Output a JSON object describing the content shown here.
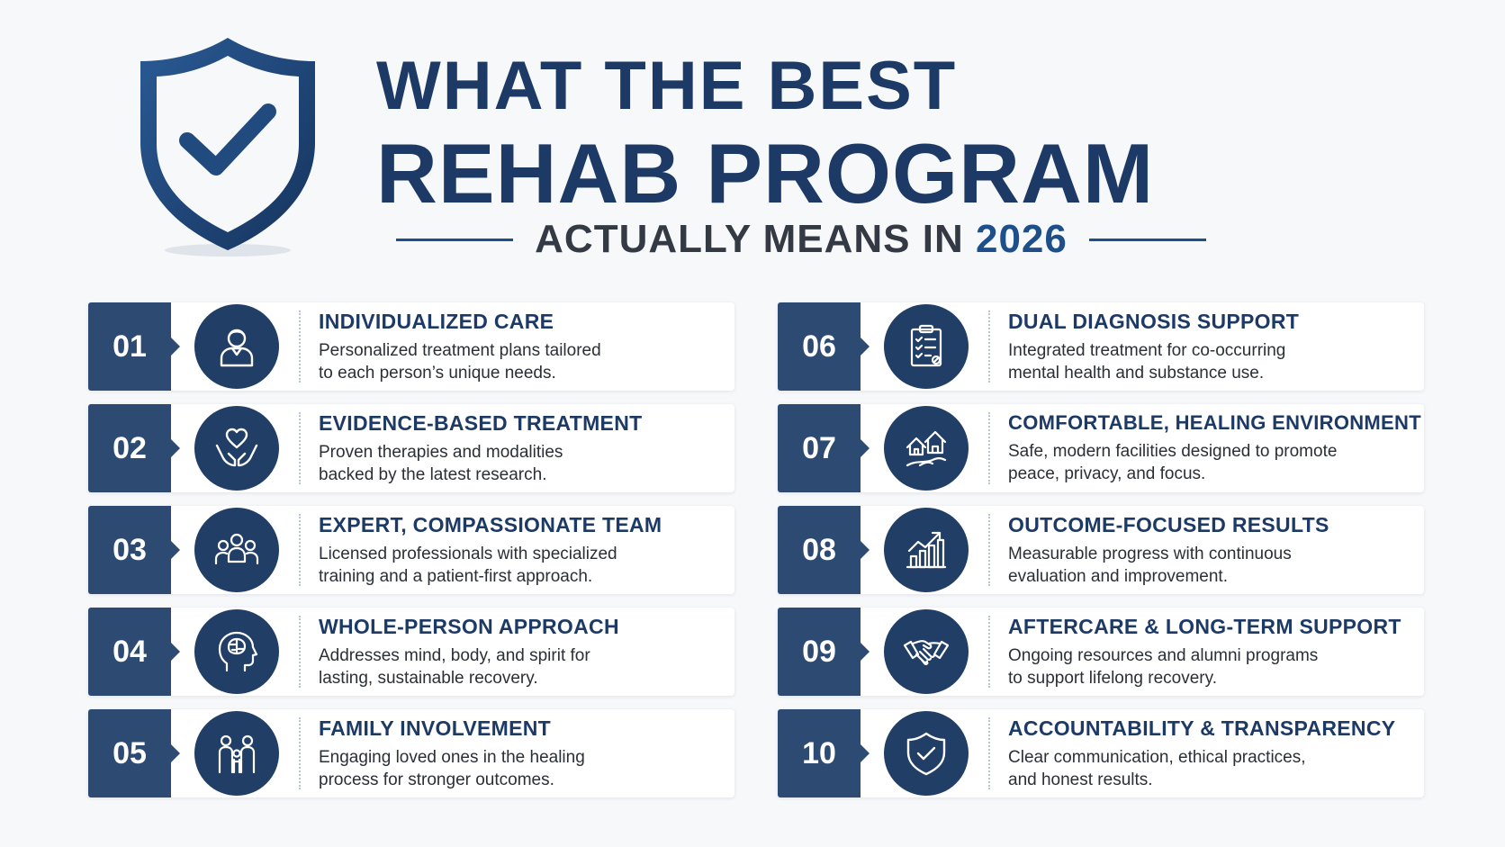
{
  "header": {
    "title_line1": "WHAT THE BEST",
    "title_line2": "REHAB PROGRAM",
    "subtitle_prefix": "ACTUALLY MEANS IN",
    "subtitle_year": "2026",
    "colors": {
      "navy": "#1d3a66",
      "accent": "#1d4f8a",
      "badge": "#2c4a72"
    },
    "logo_icon": "shield-check-icon"
  },
  "items": [
    {
      "num": "01",
      "icon": "person-icon",
      "title": "INDIVIDUALIZED CARE",
      "desc_line1": "Personalized treatment plans tailored",
      "desc_line2": "to each person’s unique needs."
    },
    {
      "num": "02",
      "icon": "hands-heart-icon",
      "title": "EVIDENCE-BASED TREATMENT",
      "desc_line1": "Proven therapies and modalities",
      "desc_line2": "backed by the latest research."
    },
    {
      "num": "03",
      "icon": "team-icon",
      "title": "EXPERT, COMPASSIONATE TEAM",
      "desc_line1": "Licensed professionals with specialized",
      "desc_line2": "training and a patient-first approach."
    },
    {
      "num": "04",
      "icon": "head-brain-icon",
      "title": "WHOLE-PERSON APPROACH",
      "desc_line1": "Addresses mind, body, and spirit for",
      "desc_line2": "lasting, sustainable recovery."
    },
    {
      "num": "05",
      "icon": "family-icon",
      "title": "FAMILY INVOLVEMENT",
      "desc_line1": "Engaging loved ones in the healing",
      "desc_line2": "process for stronger outcomes."
    },
    {
      "num": "06",
      "icon": "clipboard-checklist-icon",
      "title": "DUAL DIAGNOSIS SUPPORT",
      "desc_line1": "Integrated treatment for co-occurring",
      "desc_line2": "mental health and substance use."
    },
    {
      "num": "07",
      "icon": "houses-icon",
      "title": "COMFORTABLE, HEALING ENVIRONMENT",
      "desc_line1": "Safe, modern facilities designed to promote",
      "desc_line2": "peace, privacy, and focus."
    },
    {
      "num": "08",
      "icon": "growth-chart-icon",
      "title": "OUTCOME-FOCUSED RESULTS",
      "desc_line1": "Measurable progress with continuous",
      "desc_line2": "evaluation and improvement."
    },
    {
      "num": "09",
      "icon": "handshake-icon",
      "title": "AFTERCARE & LONG-TERM SUPPORT",
      "desc_line1": "Ongoing resources and alumni programs",
      "desc_line2": "to support lifelong recovery."
    },
    {
      "num": "10",
      "icon": "shield-check-icon",
      "title": "ACCOUNTABILITY & TRANSPARENCY",
      "desc_line1": "Clear communication, ethical practices,",
      "desc_line2": "and honest results."
    }
  ]
}
